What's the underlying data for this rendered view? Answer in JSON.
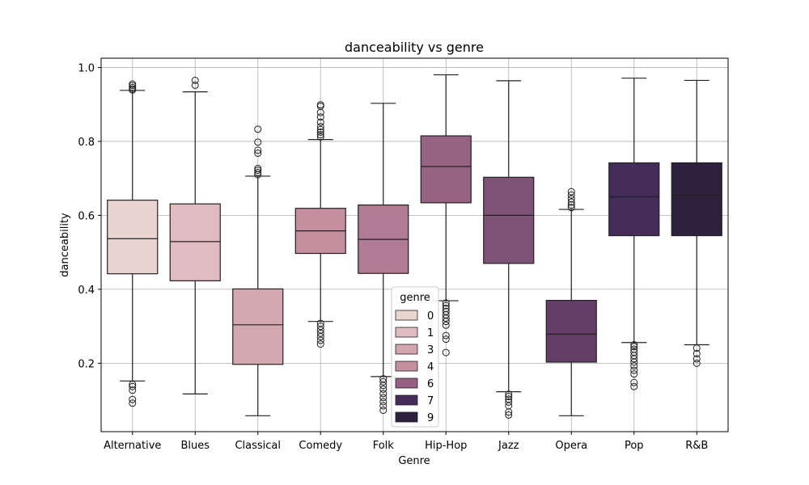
{
  "chart_data": {
    "type": "box",
    "title": "danceability vs genre",
    "xlabel": "Genre",
    "ylabel": "danceability",
    "ylim": [
      0.015,
      1.025
    ],
    "yticks": [
      "0.2",
      "0.4",
      "0.6",
      "0.8",
      "1.0"
    ],
    "grid": true,
    "categories": [
      "Alternative",
      "Blues",
      "Classical",
      "Comedy",
      "Folk",
      "Hip-Hop",
      "Jazz",
      "Opera",
      "Pop",
      "R&B"
    ],
    "legend": {
      "title": "genre",
      "placement": "lower-center",
      "entries": [
        {
          "label": "0",
          "color": "#ead4d0"
        },
        {
          "label": "1",
          "color": "#e0bcc0"
        },
        {
          "label": "3",
          "color": "#d2a4ae"
        },
        {
          "label": "4",
          "color": "#c4909f"
        },
        {
          "label": "6",
          "color": "#965f83"
        },
        {
          "label": "7",
          "color": "#452d59"
        },
        {
          "label": "9",
          "color": "#2d213f"
        }
      ]
    },
    "boxes": [
      {
        "category": "Alternative",
        "whislo": 0.152,
        "q1": 0.442,
        "med": 0.537,
        "q3": 0.641,
        "whishi": 0.938,
        "color": "#ead4d0",
        "fliers": [
          0.092,
          0.102,
          0.127,
          0.137,
          0.143,
          0.939,
          0.942,
          0.946,
          0.951,
          0.955
        ]
      },
      {
        "category": "Blues",
        "whislo": 0.117,
        "q1": 0.423,
        "med": 0.529,
        "q3": 0.631,
        "whishi": 0.934,
        "color": "#e0bcc0",
        "fliers": [
          0.952,
          0.965
        ]
      },
      {
        "category": "Classical",
        "whislo": 0.058,
        "q1": 0.197,
        "med": 0.304,
        "q3": 0.401,
        "whishi": 0.706,
        "color": "#d4a8b0",
        "fliers": [
          0.71,
          0.716,
          0.722,
          0.727,
          0.768,
          0.776,
          0.798,
          0.833
        ]
      },
      {
        "category": "Comedy",
        "whislo": 0.313,
        "q1": 0.497,
        "med": 0.558,
        "q3": 0.619,
        "whishi": 0.805,
        "color": "#c48e9f",
        "fliers": [
          0.252,
          0.262,
          0.272,
          0.281,
          0.29,
          0.3,
          0.308,
          0.812,
          0.818,
          0.825,
          0.832,
          0.84,
          0.852,
          0.866,
          0.878,
          0.895,
          0.899
        ]
      },
      {
        "category": "Folk",
        "whislo": 0.164,
        "q1": 0.443,
        "med": 0.535,
        "q3": 0.628,
        "whishi": 0.903,
        "color": "#b07b93",
        "fliers": [
          0.073,
          0.085,
          0.096,
          0.107,
          0.118,
          0.13,
          0.14,
          0.15,
          0.158
        ]
      },
      {
        "category": "Hip-Hop",
        "whislo": 0.369,
        "q1": 0.634,
        "med": 0.732,
        "q3": 0.815,
        "whishi": 0.98,
        "color": "#966482",
        "fliers": [
          0.229,
          0.265,
          0.275,
          0.303,
          0.313,
          0.322,
          0.331,
          0.34,
          0.348,
          0.356,
          0.363
        ]
      },
      {
        "category": "Jazz",
        "whislo": 0.123,
        "q1": 0.47,
        "med": 0.6,
        "q3": 0.703,
        "whishi": 0.964,
        "color": "#7f5277",
        "fliers": [
          0.06,
          0.068,
          0.085,
          0.095,
          0.103,
          0.11,
          0.116
        ]
      },
      {
        "category": "Opera",
        "whislo": 0.058,
        "q1": 0.203,
        "med": 0.279,
        "q3": 0.37,
        "whishi": 0.616,
        "color": "#643e67",
        "fliers": [
          0.621,
          0.628,
          0.636,
          0.645,
          0.655,
          0.664
        ]
      },
      {
        "category": "Pop",
        "whislo": 0.256,
        "q1": 0.545,
        "med": 0.65,
        "q3": 0.742,
        "whishi": 0.971,
        "color": "#452d59",
        "fliers": [
          0.137,
          0.148,
          0.171,
          0.181,
          0.193,
          0.203,
          0.212,
          0.221,
          0.23,
          0.238,
          0.245,
          0.25
        ]
      },
      {
        "category": "R&B",
        "whislo": 0.25,
        "q1": 0.545,
        "med": 0.654,
        "q3": 0.742,
        "whishi": 0.965,
        "color": "#2d213f",
        "fliers": [
          0.2,
          0.212,
          0.226,
          0.241
        ]
      }
    ]
  }
}
